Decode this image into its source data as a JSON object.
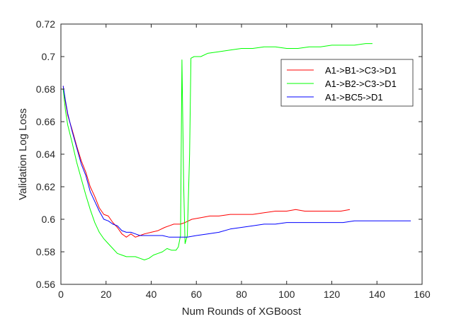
{
  "chart_data": {
    "type": "line",
    "title": "",
    "xlabel": "Num Rounds of XGBoost",
    "ylabel": "Validation Log Loss",
    "xlim": [
      0,
      160
    ],
    "ylim": [
      0.56,
      0.72
    ],
    "xticks": [
      0,
      20,
      40,
      60,
      80,
      100,
      120,
      140,
      160
    ],
    "xtick_labels": [
      "0",
      "20",
      "40",
      "60",
      "80",
      "100",
      "120",
      "140",
      "160"
    ],
    "yticks": [
      0.56,
      0.58,
      0.6,
      0.62,
      0.64,
      0.66,
      0.68,
      0.7,
      0.72
    ],
    "ytick_labels": [
      "0.56",
      "0.58",
      "0.6",
      "0.62",
      "0.64",
      "0.66",
      "0.68",
      "0.7",
      "0.72"
    ],
    "grid": false,
    "legend_position": "top-right",
    "series": [
      {
        "name": "A1->B1->C3->D1",
        "color": "#ff0000",
        "points": [
          [
            1,
            0.682
          ],
          [
            2,
            0.672
          ],
          [
            3,
            0.664
          ],
          [
            5,
            0.655
          ],
          [
            7,
            0.645
          ],
          [
            9,
            0.636
          ],
          [
            11,
            0.629
          ],
          [
            13,
            0.62
          ],
          [
            15,
            0.614
          ],
          [
            17,
            0.607
          ],
          [
            19,
            0.603
          ],
          [
            21,
            0.602
          ],
          [
            23,
            0.598
          ],
          [
            25,
            0.595
          ],
          [
            27,
            0.591
          ],
          [
            28,
            0.59
          ],
          [
            29,
            0.589
          ],
          [
            30,
            0.59
          ],
          [
            31,
            0.591
          ],
          [
            32,
            0.59
          ],
          [
            33,
            0.589
          ],
          [
            35,
            0.59
          ],
          [
            37,
            0.591
          ],
          [
            40,
            0.592
          ],
          [
            43,
            0.593
          ],
          [
            46,
            0.595
          ],
          [
            48,
            0.596
          ],
          [
            50,
            0.597
          ],
          [
            53,
            0.597
          ],
          [
            55,
            0.598
          ],
          [
            58,
            0.6
          ],
          [
            62,
            0.601
          ],
          [
            66,
            0.602
          ],
          [
            70,
            0.602
          ],
          [
            75,
            0.603
          ],
          [
            80,
            0.603
          ],
          [
            85,
            0.603
          ],
          [
            90,
            0.604
          ],
          [
            95,
            0.605
          ],
          [
            100,
            0.605
          ],
          [
            104,
            0.606
          ],
          [
            108,
            0.605
          ],
          [
            112,
            0.605
          ],
          [
            116,
            0.605
          ],
          [
            120,
            0.605
          ],
          [
            124,
            0.605
          ],
          [
            128,
            0.606
          ]
        ]
      },
      {
        "name": "A1->B2->C3->D1",
        "color": "#00ff00",
        "points": [
          [
            1,
            0.68
          ],
          [
            2,
            0.667
          ],
          [
            3,
            0.658
          ],
          [
            5,
            0.647
          ],
          [
            7,
            0.635
          ],
          [
            9,
            0.625
          ],
          [
            11,
            0.615
          ],
          [
            13,
            0.606
          ],
          [
            15,
            0.598
          ],
          [
            17,
            0.592
          ],
          [
            19,
            0.588
          ],
          [
            21,
            0.585
          ],
          [
            23,
            0.582
          ],
          [
            25,
            0.579
          ],
          [
            27,
            0.578
          ],
          [
            29,
            0.577
          ],
          [
            31,
            0.577
          ],
          [
            33,
            0.577
          ],
          [
            35,
            0.576
          ],
          [
            37,
            0.575
          ],
          [
            39,
            0.576
          ],
          [
            41,
            0.578
          ],
          [
            43,
            0.579
          ],
          [
            45,
            0.58
          ],
          [
            47,
            0.582
          ],
          [
            49,
            0.581
          ],
          [
            51,
            0.581
          ],
          [
            52,
            0.583
          ],
          [
            53,
            0.59
          ],
          [
            53.6,
            0.698
          ],
          [
            54.4,
            0.62
          ],
          [
            55,
            0.585
          ],
          [
            56,
            0.59
          ],
          [
            57,
            0.64
          ],
          [
            57.6,
            0.699
          ],
          [
            59,
            0.7
          ],
          [
            62,
            0.7
          ],
          [
            65,
            0.702
          ],
          [
            70,
            0.703
          ],
          [
            75,
            0.704
          ],
          [
            80,
            0.705
          ],
          [
            85,
            0.705
          ],
          [
            90,
            0.706
          ],
          [
            95,
            0.706
          ],
          [
            100,
            0.705
          ],
          [
            105,
            0.705
          ],
          [
            110,
            0.706
          ],
          [
            115,
            0.706
          ],
          [
            120,
            0.707
          ],
          [
            125,
            0.707
          ],
          [
            130,
            0.707
          ],
          [
            135,
            0.708
          ],
          [
            138,
            0.708
          ]
        ]
      },
      {
        "name": "A1->BC5->D1",
        "color": "#0000ff",
        "points": [
          [
            1,
            0.682
          ],
          [
            2,
            0.673
          ],
          [
            3,
            0.665
          ],
          [
            5,
            0.654
          ],
          [
            7,
            0.644
          ],
          [
            9,
            0.634
          ],
          [
            11,
            0.627
          ],
          [
            13,
            0.617
          ],
          [
            15,
            0.611
          ],
          [
            17,
            0.605
          ],
          [
            19,
            0.6
          ],
          [
            21,
            0.599
          ],
          [
            23,
            0.597
          ],
          [
            25,
            0.596
          ],
          [
            27,
            0.593
          ],
          [
            29,
            0.592
          ],
          [
            31,
            0.592
          ],
          [
            33,
            0.591
          ],
          [
            35,
            0.59
          ],
          [
            37,
            0.59
          ],
          [
            39,
            0.59
          ],
          [
            42,
            0.59
          ],
          [
            45,
            0.59
          ],
          [
            48,
            0.589
          ],
          [
            50,
            0.589
          ],
          [
            53,
            0.589
          ],
          [
            56,
            0.589
          ],
          [
            60,
            0.59
          ],
          [
            65,
            0.591
          ],
          [
            70,
            0.592
          ],
          [
            75,
            0.594
          ],
          [
            80,
            0.595
          ],
          [
            85,
            0.596
          ],
          [
            90,
            0.597
          ],
          [
            95,
            0.597
          ],
          [
            100,
            0.598
          ],
          [
            105,
            0.598
          ],
          [
            110,
            0.598
          ],
          [
            115,
            0.598
          ],
          [
            120,
            0.598
          ],
          [
            125,
            0.598
          ],
          [
            130,
            0.599
          ],
          [
            135,
            0.599
          ],
          [
            140,
            0.599
          ],
          [
            145,
            0.599
          ],
          [
            150,
            0.599
          ],
          [
            155,
            0.599
          ]
        ]
      }
    ]
  }
}
